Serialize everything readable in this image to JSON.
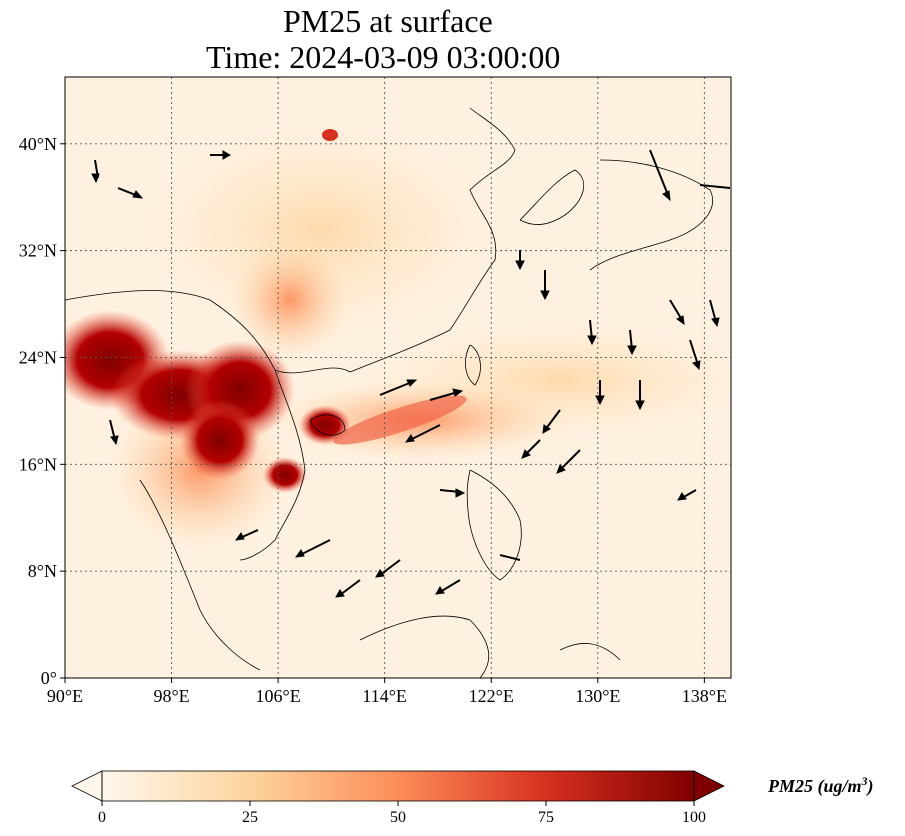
{
  "title": {
    "line1": "PM25 at surface",
    "line2": "Time: 2024-03-09 03:00:00"
  },
  "map": {
    "lon_range": [
      90,
      140
    ],
    "lat_range": [
      0,
      45
    ],
    "xticks": [
      {
        "value": 90,
        "label": "90°E"
      },
      {
        "value": 98,
        "label": "98°E"
      },
      {
        "value": 106,
        "label": "106°E"
      },
      {
        "value": 114,
        "label": "114°E"
      },
      {
        "value": 122,
        "label": "122°E"
      },
      {
        "value": 130,
        "label": "130°E"
      },
      {
        "value": 138,
        "label": "138°E"
      }
    ],
    "yticks": [
      {
        "value": 0,
        "label": "0°"
      },
      {
        "value": 8,
        "label": "8°N"
      },
      {
        "value": 16,
        "label": "16°N"
      },
      {
        "value": 24,
        "label": "24°N"
      },
      {
        "value": 32,
        "label": "32°N"
      },
      {
        "value": 40,
        "label": "40°N"
      }
    ],
    "gridlines": true,
    "colors": {
      "low": "#fff5eb",
      "mid": "#fdae6b",
      "high": "#7f0000",
      "coast": "#000000"
    }
  },
  "colorbar": {
    "ticks": [
      {
        "value": 0,
        "label": "0"
      },
      {
        "value": 25,
        "label": "25"
      },
      {
        "value": 50,
        "label": "50"
      },
      {
        "value": 75,
        "label": "75"
      },
      {
        "value": 100,
        "label": "100"
      }
    ],
    "range": [
      0,
      100
    ],
    "label_main": "PM25 (ug/m",
    "label_sup": "3",
    "label_end": ")",
    "extend": "both"
  }
}
